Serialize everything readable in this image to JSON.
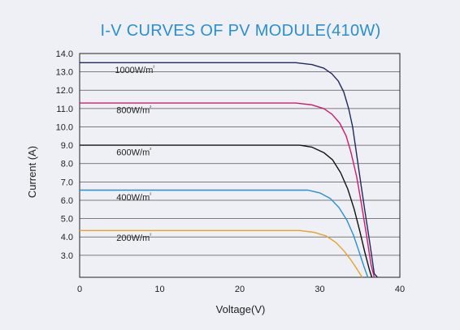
{
  "chart_data": {
    "type": "line",
    "title": "I-V CURVES OF PV MODULE(410W)",
    "xlabel": "Voltage(V)",
    "ylabel": "Current (A)",
    "xlim": [
      0,
      40
    ],
    "ylim": [
      1.8,
      14.0
    ],
    "x_ticks": [
      "0",
      "10",
      "20",
      "30",
      "40"
    ],
    "y_ticks": [
      "14.0",
      "13.0",
      "12.0",
      "11.0",
      "10.0",
      "9.0",
      "8.0",
      "7.0",
      "6.0",
      "5.0",
      "4.0",
      "3.0"
    ],
    "grid": "horizontal",
    "series": [
      {
        "name": "1000W/m²",
        "color": "#1f2a5c",
        "x": [
          0,
          10,
          20,
          27.0,
          29.0,
          30.5,
          31.5,
          32.3,
          33.0,
          33.6,
          34.1,
          34.6,
          35.1,
          35.6,
          36.2,
          36.8,
          37.2
        ],
        "y": [
          13.5,
          13.5,
          13.5,
          13.5,
          13.4,
          13.2,
          12.9,
          12.5,
          11.9,
          11.0,
          10.0,
          8.5,
          7.0,
          5.5,
          3.8,
          2.0,
          1.8
        ]
      },
      {
        "name": "800W/m²",
        "color": "#d01a6f",
        "x": [
          0,
          10,
          20,
          27.0,
          29.0,
          30.5,
          31.5,
          32.5,
          33.3,
          33.9,
          34.6,
          35.2,
          35.8,
          36.4,
          36.8
        ],
        "y": [
          11.3,
          11.3,
          11.3,
          11.3,
          11.2,
          11.0,
          10.7,
          10.2,
          9.5,
          8.6,
          7.3,
          5.8,
          4.2,
          2.5,
          1.8
        ]
      },
      {
        "name": "600W/m²",
        "color": "#111111",
        "x": [
          0,
          10,
          20,
          27.5,
          29.0,
          30.5,
          31.6,
          32.6,
          33.5,
          34.3,
          35.0,
          35.6,
          36.2,
          36.5
        ],
        "y": [
          9.0,
          9.0,
          9.0,
          9.0,
          8.9,
          8.6,
          8.2,
          7.5,
          6.6,
          5.5,
          4.3,
          3.2,
          2.2,
          1.8
        ]
      },
      {
        "name": "400W/m²",
        "color": "#2a8fce",
        "x": [
          0,
          10,
          20,
          28.5,
          30.0,
          31.3,
          32.4,
          33.4,
          34.2,
          34.9,
          35.5,
          36.0
        ],
        "y": [
          6.55,
          6.55,
          6.55,
          6.55,
          6.4,
          6.1,
          5.6,
          4.9,
          4.1,
          3.2,
          2.4,
          1.8
        ]
      },
      {
        "name": "200W/m²",
        "color": "#e8a22a",
        "x": [
          0,
          10,
          20,
          27.5,
          29.3,
          30.8,
          32.0,
          33.0,
          33.8,
          34.5,
          35.0,
          35.3
        ],
        "y": [
          4.35,
          4.35,
          4.35,
          4.35,
          4.25,
          4.05,
          3.7,
          3.25,
          2.8,
          2.35,
          2.0,
          1.8
        ]
      }
    ]
  },
  "labels": [
    {
      "text": "1000W/m",
      "sup": "²",
      "x": 4.4,
      "y": 12.95
    },
    {
      "text": "800W/m",
      "sup": "²",
      "x": 4.6,
      "y": 10.75
    },
    {
      "text": "600W/m",
      "sup": "²",
      "x": 4.6,
      "y": 8.45
    },
    {
      "text": "400W/m",
      "sup": "²",
      "x": 4.6,
      "y": 6.0
    },
    {
      "text": "200W/m",
      "sup": "²",
      "x": 4.6,
      "y": 3.8
    }
  ]
}
